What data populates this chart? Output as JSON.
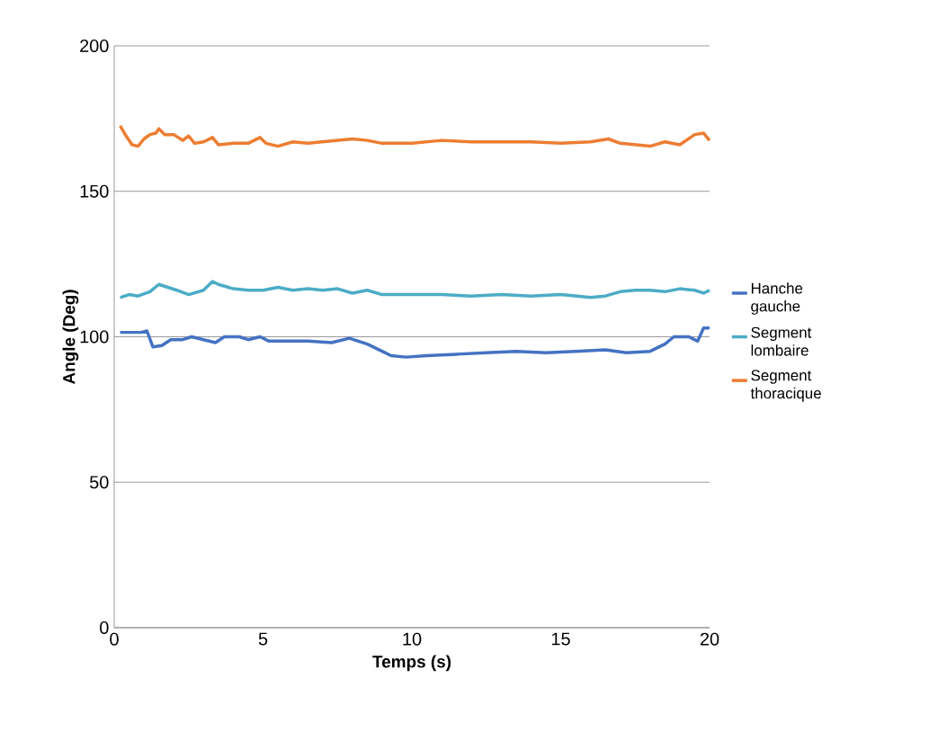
{
  "chart_data": {
    "type": "line",
    "xlabel": "Temps (s)",
    "ylabel": "Angle (Deg)",
    "xlim": [
      0,
      20
    ],
    "ylim": [
      0,
      200
    ],
    "xticks": [
      0,
      5,
      10,
      15,
      20
    ],
    "yticks": [
      0,
      50,
      100,
      150,
      200
    ],
    "grid": "y",
    "legend": "right",
    "marker": "none",
    "line_style": "solid",
    "series": [
      {
        "name": "Hanche gauche",
        "color": "#4472c4",
        "x": [
          0.2,
          0.5,
          0.9,
          1.1,
          1.3,
          1.6,
          1.9,
          2.3,
          2.6,
          3.0,
          3.4,
          3.7,
          4.2,
          4.5,
          4.9,
          5.2,
          5.8,
          6.5,
          7.3,
          7.9,
          8.5,
          9.0,
          9.3,
          9.8,
          10.5,
          11.5,
          12.5,
          13.5,
          14.5,
          15.5,
          16.5,
          17.2,
          18,
          18.5,
          18.8,
          19.3,
          19.6,
          19.8,
          20
        ],
        "values": [
          101.5,
          101.5,
          101.5,
          102,
          96.5,
          97,
          99,
          99,
          100,
          99,
          98,
          100,
          100,
          99,
          100,
          98.5,
          98.5,
          98.5,
          98,
          99.5,
          97.5,
          95,
          93.5,
          93,
          93.5,
          94,
          94.5,
          95,
          94.5,
          95,
          95.5,
          94.5,
          95,
          97.5,
          100,
          100,
          98.5,
          103,
          103
        ]
      },
      {
        "name": "Segment lombaire",
        "color": "#4bacc6",
        "x": [
          0.2,
          0.5,
          0.8,
          1.2,
          1.5,
          1.8,
          2.1,
          2.5,
          3.0,
          3.3,
          3.5,
          4.0,
          4.5,
          5.0,
          5.5,
          6.0,
          6.5,
          7.0,
          7.5,
          8.0,
          8.5,
          9.0,
          9.5,
          10,
          11,
          12,
          13,
          14,
          15,
          16,
          16.5,
          17,
          17.5,
          18,
          18.5,
          19,
          19.5,
          19.8,
          20
        ],
        "values": [
          113.5,
          114.5,
          114,
          115.5,
          118,
          117,
          116,
          114.5,
          116,
          119,
          118,
          116.5,
          116,
          116,
          117,
          116,
          116.5,
          116,
          116.5,
          115,
          116,
          114.5,
          114.5,
          114.5,
          114.5,
          114,
          114.5,
          114,
          114.5,
          113.5,
          114,
          115.5,
          116,
          116,
          115.5,
          116.5,
          116,
          115,
          116
        ]
      },
      {
        "name": "Segment thoracique",
        "color": "#ed7d31",
        "x": [
          0.2,
          0.4,
          0.6,
          0.8,
          1.0,
          1.2,
          1.4,
          1.5,
          1.7,
          2.0,
          2.3,
          2.5,
          2.7,
          3.0,
          3.3,
          3.5,
          4.0,
          4.5,
          4.9,
          5.1,
          5.5,
          6.0,
          6.5,
          7.0,
          7.5,
          8.0,
          8.5,
          9.0,
          9.5,
          10,
          10.5,
          11,
          12,
          13,
          14,
          15,
          16,
          16.6,
          17,
          18,
          18.5,
          19,
          19.5,
          19.8,
          20
        ],
        "values": [
          172.5,
          169,
          166,
          165.5,
          168,
          169.5,
          170,
          171.5,
          169.5,
          169.5,
          167.5,
          169,
          166.5,
          167,
          168.5,
          166,
          166.5,
          166.5,
          168.5,
          166.5,
          165.5,
          167,
          166.5,
          167,
          167.5,
          168,
          167.5,
          166.5,
          166.5,
          166.5,
          167,
          167.5,
          167,
          167,
          167,
          166.5,
          167,
          168,
          166.5,
          165.5,
          167,
          166,
          169.5,
          170,
          167.5
        ]
      }
    ]
  }
}
